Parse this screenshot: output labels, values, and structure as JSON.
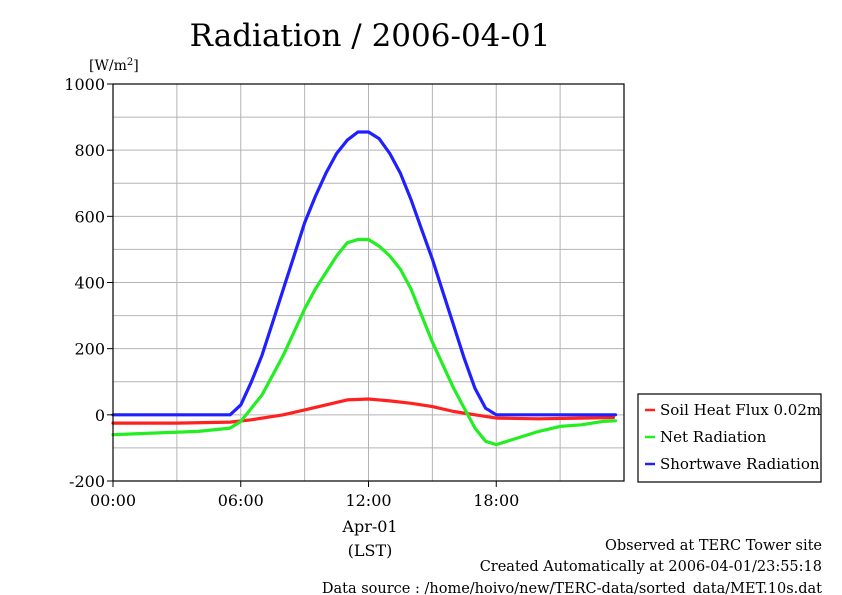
{
  "chart_data": {
    "type": "line",
    "title": "Radiation / 2006-04-01",
    "ylabel_unit": "[W/m",
    "ylabel_unit_sup": "2",
    "ylabel_unit_end": "]",
    "xlabel_date": "Apr-01",
    "xlabel": "(LST)",
    "ylim": [
      -200,
      1000
    ],
    "xlim_hours": [
      0,
      24
    ],
    "grid": true,
    "legend_position": "right",
    "x_ticks": [
      {
        "hour": 0,
        "label": "00:00"
      },
      {
        "hour": 6,
        "label": "06:00"
      },
      {
        "hour": 12,
        "label": "12:00"
      },
      {
        "hour": 18,
        "label": "18:00"
      }
    ],
    "y_ticks": [
      {
        "value": 1000,
        "label": "1000"
      },
      {
        "value": 800,
        "label": "800"
      },
      {
        "value": 600,
        "label": "600"
      },
      {
        "value": 400,
        "label": "400"
      },
      {
        "value": 200,
        "label": "200"
      },
      {
        "value": 0,
        "label": "0"
      },
      {
        "value": -200,
        "label": "-200"
      }
    ],
    "series": [
      {
        "name": "Soil Heat Flux 0.02m",
        "color": "#ff2020",
        "points": [
          [
            0,
            -25
          ],
          [
            3,
            -25
          ],
          [
            5.5,
            -22
          ],
          [
            6.5,
            -15
          ],
          [
            8,
            0
          ],
          [
            9,
            15
          ],
          [
            10,
            30
          ],
          [
            11,
            45
          ],
          [
            12,
            48
          ],
          [
            13,
            42
          ],
          [
            14,
            35
          ],
          [
            15,
            25
          ],
          [
            16,
            10
          ],
          [
            17,
            0
          ],
          [
            18,
            -10
          ],
          [
            20,
            -12
          ],
          [
            22,
            -10
          ],
          [
            23.5,
            -8
          ]
        ]
      },
      {
        "name": "Net Radiation",
        "color": "#22ee22",
        "points": [
          [
            0,
            -60
          ],
          [
            2,
            -55
          ],
          [
            4,
            -50
          ],
          [
            5.5,
            -40
          ],
          [
            6,
            -20
          ],
          [
            6.5,
            20
          ],
          [
            7,
            60
          ],
          [
            7.5,
            120
          ],
          [
            8,
            180
          ],
          [
            8.5,
            250
          ],
          [
            9,
            320
          ],
          [
            9.5,
            380
          ],
          [
            10,
            430
          ],
          [
            10.5,
            480
          ],
          [
            11,
            520
          ],
          [
            11.5,
            530
          ],
          [
            12,
            530
          ],
          [
            12.5,
            510
          ],
          [
            13,
            480
          ],
          [
            13.5,
            440
          ],
          [
            14,
            380
          ],
          [
            14.5,
            300
          ],
          [
            15,
            220
          ],
          [
            15.5,
            150
          ],
          [
            16,
            80
          ],
          [
            16.5,
            20
          ],
          [
            17,
            -40
          ],
          [
            17.5,
            -80
          ],
          [
            18,
            -90
          ],
          [
            19,
            -70
          ],
          [
            20,
            -50
          ],
          [
            21,
            -35
          ],
          [
            22,
            -30
          ],
          [
            23,
            -20
          ],
          [
            23.6,
            -18
          ]
        ]
      },
      {
        "name": "Shortwave Radiation",
        "color": "#2020ff",
        "points": [
          [
            0,
            0
          ],
          [
            5.5,
            0
          ],
          [
            6,
            30
          ],
          [
            6.5,
            100
          ],
          [
            7,
            180
          ],
          [
            7.5,
            280
          ],
          [
            8,
            380
          ],
          [
            8.5,
            480
          ],
          [
            9,
            580
          ],
          [
            9.5,
            660
          ],
          [
            10,
            730
          ],
          [
            10.5,
            790
          ],
          [
            11,
            830
          ],
          [
            11.5,
            855
          ],
          [
            12,
            855
          ],
          [
            12.5,
            835
          ],
          [
            13,
            790
          ],
          [
            13.5,
            730
          ],
          [
            14,
            650
          ],
          [
            14.5,
            560
          ],
          [
            15,
            470
          ],
          [
            15.5,
            370
          ],
          [
            16,
            270
          ],
          [
            16.5,
            170
          ],
          [
            17,
            80
          ],
          [
            17.5,
            20
          ],
          [
            18,
            0
          ],
          [
            23.6,
            0
          ]
        ]
      }
    ]
  },
  "footer": {
    "observed": "Observed at TERC Tower site",
    "created": "Created Automatically at 2006-04-01/23:55:18",
    "source": "Data source : /home/hoivo/new/TERC-data/sorted_data/MET.10s.dat"
  }
}
